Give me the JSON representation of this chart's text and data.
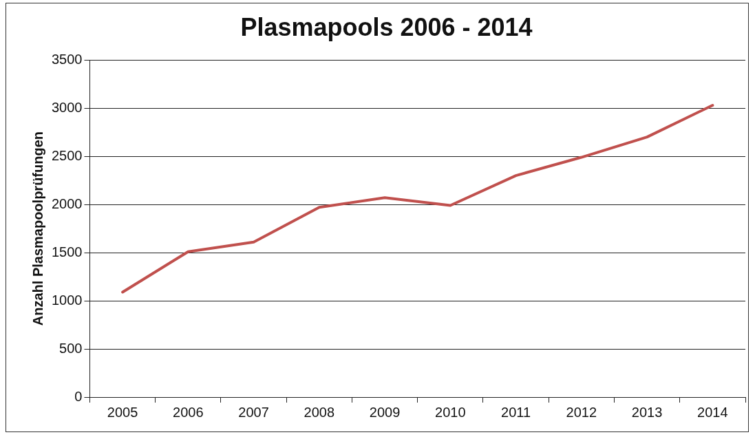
{
  "chart_data": {
    "type": "line",
    "title": "Plasmapools 2006 - 2014",
    "ylabel": "Anzahl Plasmapoolprüfungen",
    "categories": [
      "2005",
      "2006",
      "2007",
      "2008",
      "2009",
      "2010",
      "2011",
      "2012",
      "2013",
      "2014"
    ],
    "series": [
      {
        "color": "#c0504d",
        "values": [
          1090,
          1510,
          1610,
          1970,
          2070,
          1990,
          2300,
          2490,
          2700,
          3030
        ]
      }
    ],
    "ylim": [
      0,
      3500
    ],
    "yticks": [
      0,
      500,
      1000,
      1500,
      2000,
      2500,
      3000,
      3500
    ],
    "grid": "y",
    "legend": false,
    "marker": "none",
    "line_style": "solid"
  }
}
